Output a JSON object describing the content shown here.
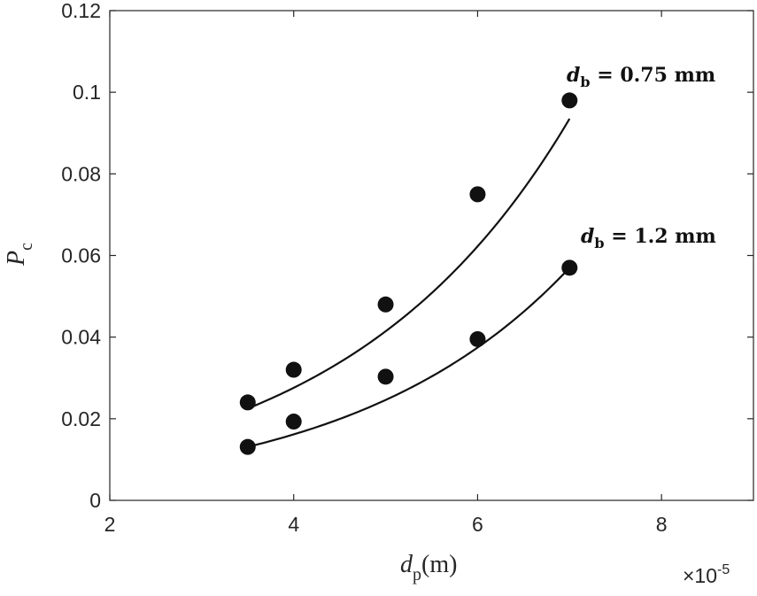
{
  "chart_data": {
    "type": "scatter",
    "title": "",
    "xlabel": {
      "symbol": "d",
      "sub": "p",
      "unit": "(m)"
    },
    "ylabel": {
      "symbol": "P",
      "sub": "c"
    },
    "x_scale_label": "×10",
    "x_scale_exponent": "-5",
    "xlim": [
      2,
      9
    ],
    "ylim": [
      0,
      0.12
    ],
    "xticks": [
      2,
      4,
      6,
      8
    ],
    "xtick_labels": [
      "2",
      "4",
      "6",
      "8"
    ],
    "yticks": [
      0,
      0.02,
      0.04,
      0.06,
      0.08,
      0.1,
      0.12
    ],
    "ytick_labels": [
      "0",
      "0.02",
      "0.04",
      "0.06",
      "0.08",
      "0.1",
      "0.12"
    ],
    "grid": false,
    "series": [
      {
        "name": "d_b = 0.75 mm",
        "label_parts": {
          "symbol": "d",
          "sub": "b",
          "rest": " = 0.75 mm"
        },
        "x": [
          3.5,
          4,
          5,
          6,
          7
        ],
        "y": [
          0.024,
          0.032,
          0.048,
          0.075,
          0.098
        ],
        "fit_x": [
          3.5,
          7
        ],
        "fit_y": [
          0.0225,
          0.0935
        ]
      },
      {
        "name": "d_b = 1.2 mm",
        "label_parts": {
          "symbol": "d",
          "sub": "b",
          "rest": " = 1.2 mm"
        },
        "x": [
          3.5,
          4,
          5,
          6,
          7
        ],
        "y": [
          0.0131,
          0.0193,
          0.0303,
          0.0395,
          0.057
        ],
        "fit_x": [
          3.5,
          7
        ],
        "fit_y": [
          0.0131,
          0.057
        ]
      }
    ]
  }
}
